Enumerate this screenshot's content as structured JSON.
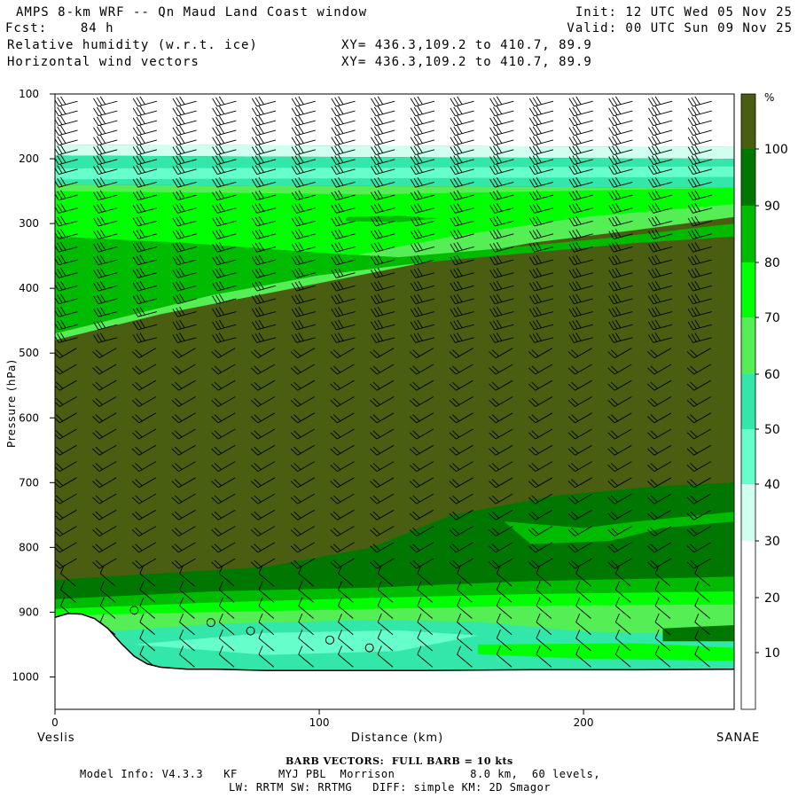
{
  "header": {
    "line1_left": "AMPS 8-km WRF -- Qn Maud Land Coast window",
    "line1_right": "Init: 12 UTC Wed 05 Nov 25",
    "line2_left": "Fcst:    84 h",
    "line2_right": "Valid: 00 UTC Sun 09 Nov 25",
    "line3_left": "Relative humidity (w.r.t. ice)",
    "line3_right": "XY= 436.3,109.2 to 410.7, 89.9",
    "line4_left": "Horizontal wind vectors",
    "line4_right": "XY= 436.3,109.2 to 410.7, 89.9"
  },
  "colors": {
    "rh_lt20": "#ffffff",
    "rh_20_30": "#ffffff",
    "rh_30_40": "#d0fff0",
    "rh_40_50": "#66ffcc",
    "rh_50_60": "#33e6aa",
    "rh_60_70": "#55ee55",
    "rh_70_80": "#00ff00",
    "rh_80_90": "#00bb00",
    "rh_90_100": "#007700",
    "rh_gt100": "#4a5e12",
    "barb": "#000000",
    "terrain": "#ffffff"
  },
  "chart_data": {
    "type": "heatmap",
    "title": "Relative humidity (w.r.t. ice)",
    "overlay": "Horizontal wind vectors",
    "xlabel": "Distance (km)",
    "ylabel": "Pressure (hPa)",
    "xlim": [
      0,
      257
    ],
    "ylim": [
      1050,
      100
    ],
    "x_ticks": [
      0,
      100,
      200
    ],
    "y_ticks": [
      100,
      200,
      300,
      400,
      500,
      600,
      700,
      800,
      900,
      1000
    ],
    "x_endpoints": {
      "left": "Veslis",
      "right": "SANAE"
    },
    "colorbar": {
      "unit": "%",
      "levels": [
        10,
        20,
        30,
        40,
        50,
        60,
        70,
        80,
        90,
        100
      ]
    },
    "rh_layers": [
      {
        "name": "upper_dry_band",
        "min_rh": 30,
        "max_rh": 50,
        "p_range": [
          185,
          230
        ]
      },
      {
        "name": "saturated_mid_troposphere",
        "min_rh": 100,
        "p_range": [
          330,
          850
        ]
      },
      {
        "name": "upper_moist_region",
        "min_rh": 60,
        "max_rh": 90,
        "p_range": [
          230,
          480
        ]
      },
      {
        "name": "low_level_band",
        "min_rh": 50,
        "max_rh": 90,
        "p_range": [
          860,
          990
        ]
      }
    ],
    "surface_pressure_profile": {
      "x": [
        0,
        5,
        10,
        15,
        20,
        25,
        30,
        35,
        40,
        50,
        60,
        80,
        100,
        140,
        180,
        220,
        257
      ],
      "p": [
        908,
        902,
        903,
        910,
        925,
        948,
        968,
        980,
        985,
        988,
        988,
        990,
        990,
        990,
        989,
        989,
        988
      ]
    },
    "circle_markers": [
      {
        "x": 30,
        "p": 897
      },
      {
        "x": 59,
        "p": 916
      },
      {
        "x": 74,
        "p": 929
      },
      {
        "x": 104,
        "p": 943
      },
      {
        "x": 119,
        "p": 955
      }
    ],
    "wind_barb_levels": [
      115,
      130,
      145,
      160,
      175,
      190,
      205,
      220,
      240,
      260,
      280,
      300,
      320,
      340,
      360,
      380,
      400,
      420,
      440,
      460,
      480,
      500,
      525,
      550,
      575,
      600,
      625,
      650,
      675,
      700,
      725,
      750,
      775,
      800,
      825,
      850,
      875,
      900,
      925,
      950,
      975
    ],
    "wind_barb_x": [
      5,
      20,
      35,
      50,
      65,
      80,
      95,
      110,
      125,
      140,
      155,
      170,
      185,
      200,
      215,
      230,
      245
    ]
  },
  "footer": {
    "barb_note": "BARB VECTORS:  FULL BARB = 10 kts",
    "model_info_1": "Model Info: V4.3.3   KF      MYJ PBL  Morrison           8.0 km,  60 levels,",
    "model_info_2": "LW: RRTM SW: RRTMG   DIFF: simple KM: 2D Smagor"
  }
}
